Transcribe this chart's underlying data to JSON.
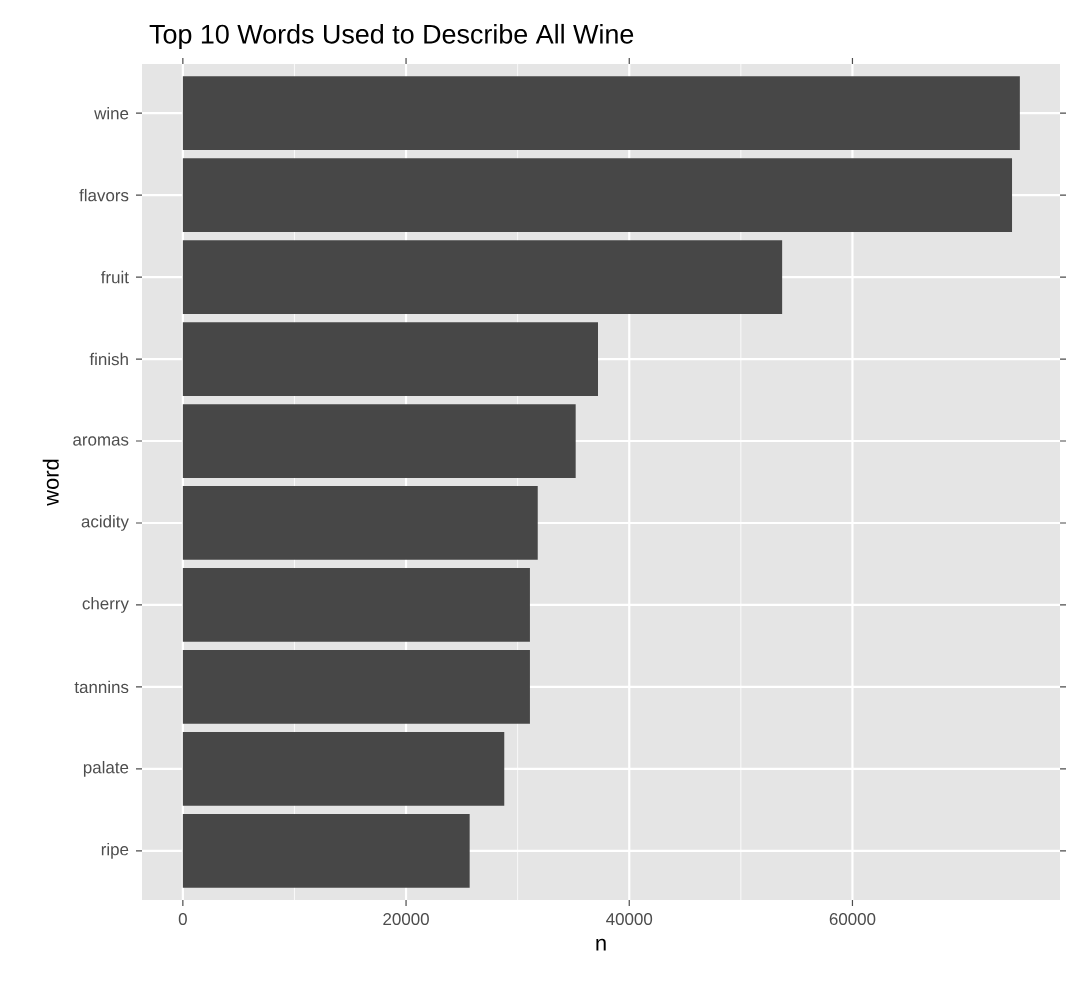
{
  "chart_data": {
    "type": "bar",
    "orientation": "horizontal",
    "title": "Top 10 Words Used to Describe All Wine",
    "xlabel": "n",
    "ylabel": "word",
    "categories": [
      "wine",
      "flavors",
      "fruit",
      "finish",
      "aromas",
      "acidity",
      "cherry",
      "tannins",
      "palate",
      "ripe"
    ],
    "values": [
      75000,
      74300,
      53700,
      37200,
      35200,
      31800,
      31100,
      31100,
      28800,
      25700
    ],
    "color": "#474747",
    "xlim": [
      -3660,
      78600
    ],
    "xticks": [
      0,
      20000,
      40000,
      60000
    ],
    "grid": true
  }
}
